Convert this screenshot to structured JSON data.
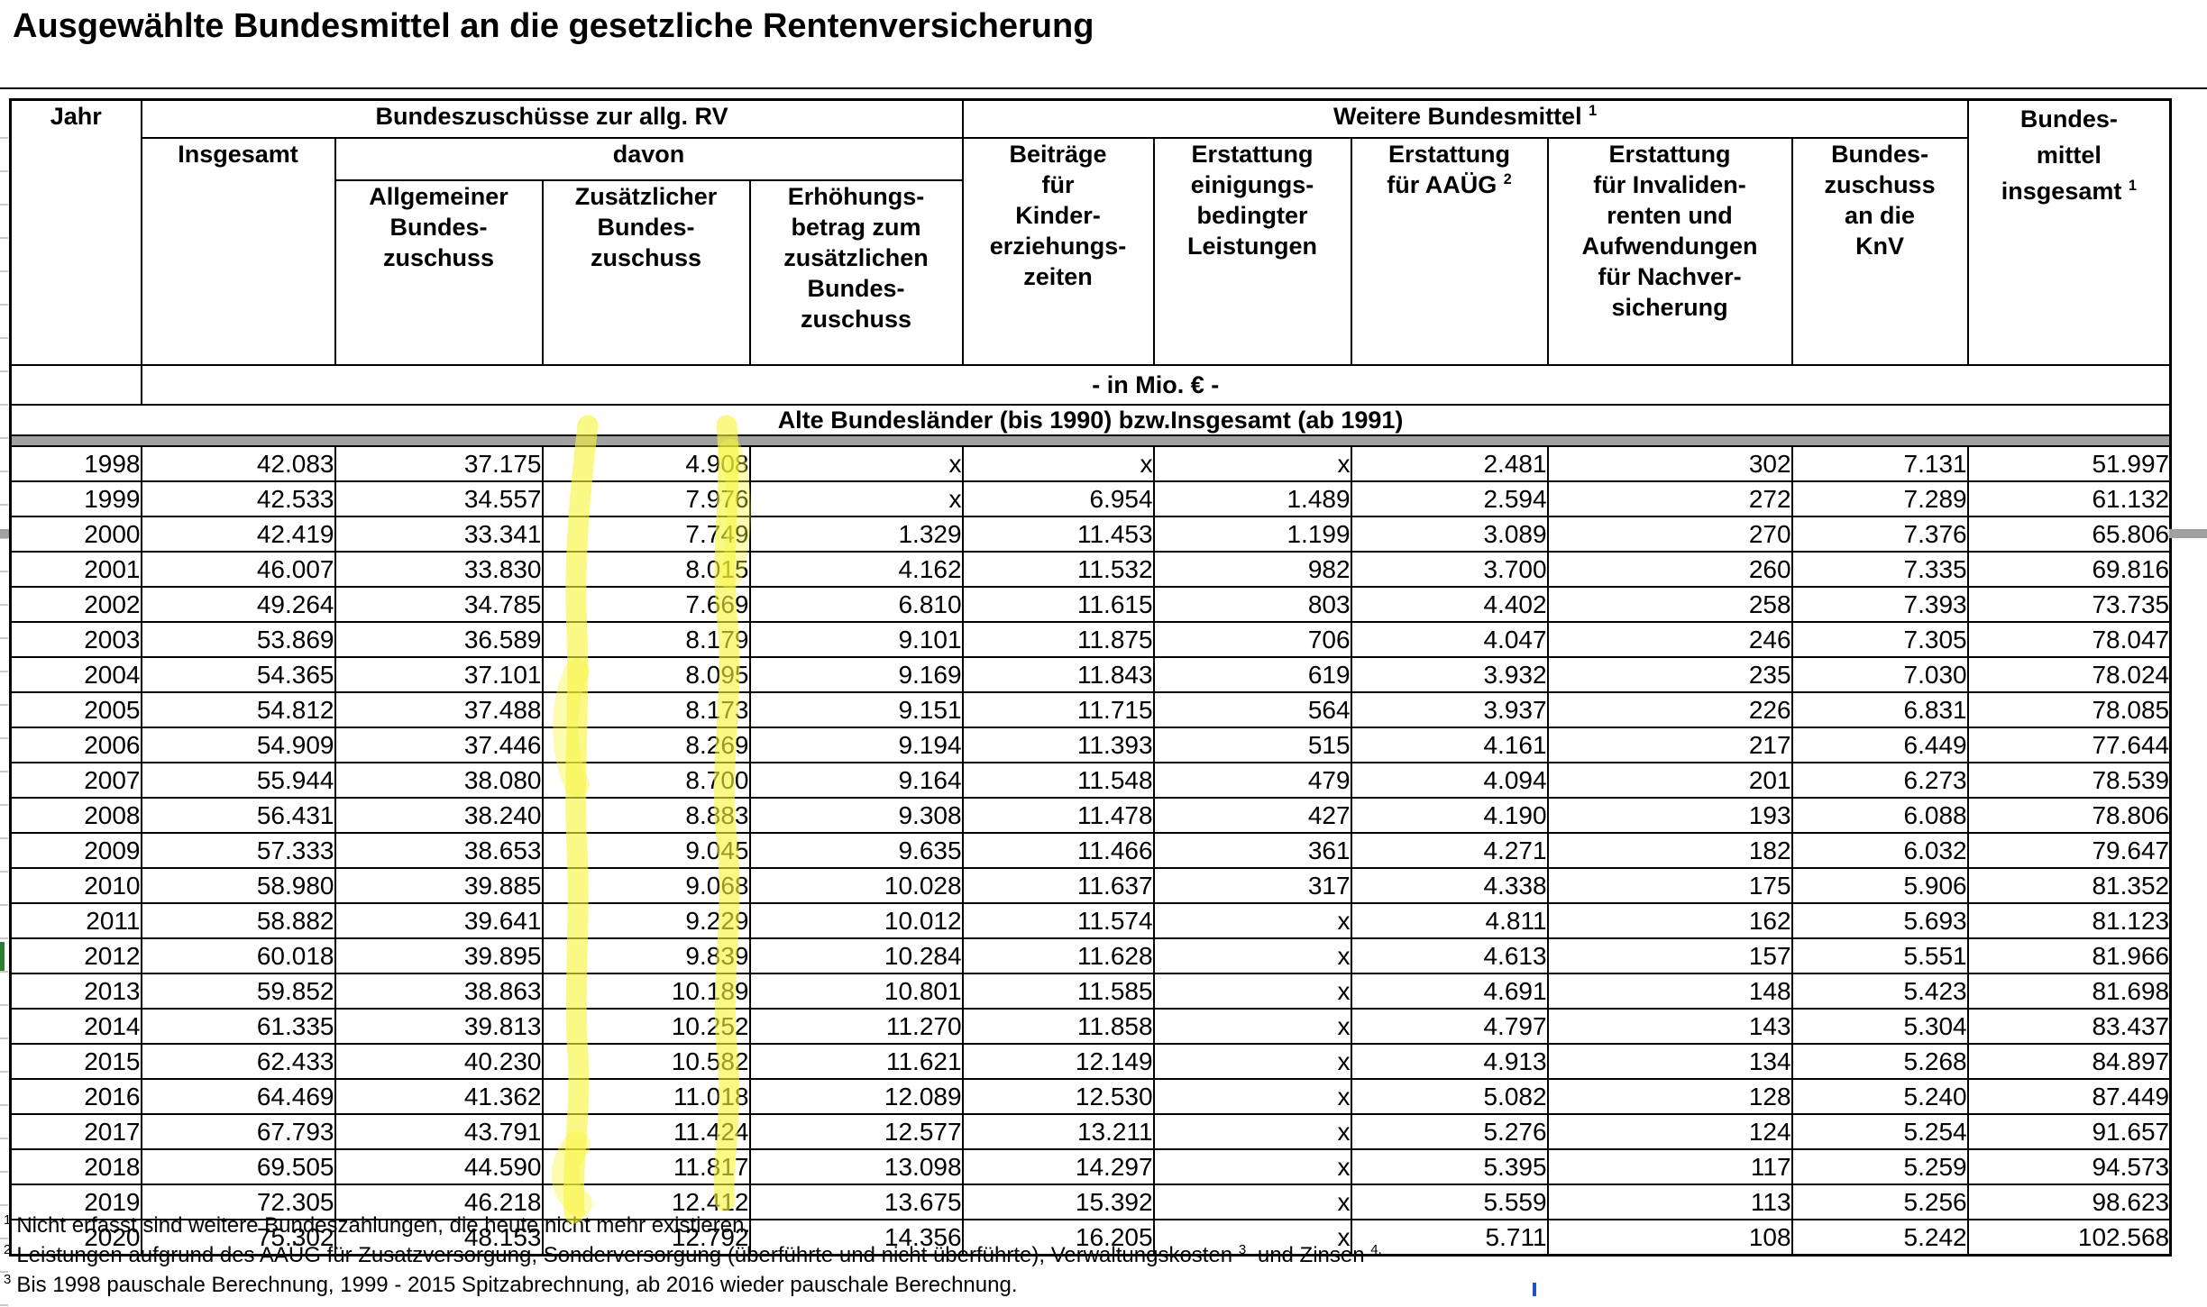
{
  "title": "Ausgewählte Bundesmittel an die gesetzliche Rentenversicherung",
  "colors": {
    "highlighter": "#f7f63a",
    "gray_band": "#a0a0a0",
    "border": "#000000",
    "green_mark": "#2e7d32",
    "blue_mark": "#1f4fd8",
    "grid_sliver": "#c9c9c9"
  },
  "table": {
    "header": {
      "jahr": "Jahr",
      "group1": "Bundeszuschüsse zur allg. RV",
      "insgesamt": "Insgesamt",
      "davon": "davon",
      "allgemeiner": "Allgemeiner\nBundes-\nzuschuss",
      "zusaetzlicher": "Zusätzlicher\nBundes-\nzuschuss",
      "erhoehung": "Erhöhungs-\nbetrag zum\nzusätzlichen\nBundes-\nzuschuss",
      "group2": "Weitere Bundesmittel",
      "group2_sup": "1",
      "beitraege": "Beiträge\nfür\nKinder-\nerziehungs-\nzeiten",
      "einigung": "Erstattung\neinigungs-\nbedingter\nLeistungen",
      "aaueg": "Erstattung\nfür AAÜG",
      "aaueg_sup": "2",
      "invaliden": "Erstattung\nfür Invaliden-\nrenten und\nAufwendungen\nfür Nachver-\nsicherung",
      "knv": "Bundes-\nzuschuss\nan die\nKnV",
      "gesamt": "Bundes-\nmittel\ninsgesamt",
      "gesamt_sup": "1"
    },
    "unit_row": "- in Mio. € -",
    "section_row": "Alte Bundesländer (bis 1990) bzw.Insgesamt (ab 1991)",
    "rows": [
      [
        "1998",
        "42.083",
        "37.175",
        "4.908",
        "x",
        "x",
        "x",
        "2.481",
        "302",
        "7.131",
        "51.997"
      ],
      [
        "1999",
        "42.533",
        "34.557",
        "7.976",
        "x",
        "6.954",
        "1.489",
        "2.594",
        "272",
        "7.289",
        "61.132"
      ],
      [
        "2000",
        "42.419",
        "33.341",
        "7.749",
        "1.329",
        "11.453",
        "1.199",
        "3.089",
        "270",
        "7.376",
        "65.806"
      ],
      [
        "2001",
        "46.007",
        "33.830",
        "8.015",
        "4.162",
        "11.532",
        "982",
        "3.700",
        "260",
        "7.335",
        "69.816"
      ],
      [
        "2002",
        "49.264",
        "34.785",
        "7.669",
        "6.810",
        "11.615",
        "803",
        "4.402",
        "258",
        "7.393",
        "73.735"
      ],
      [
        "2003",
        "53.869",
        "36.589",
        "8.179",
        "9.101",
        "11.875",
        "706",
        "4.047",
        "246",
        "7.305",
        "78.047"
      ],
      [
        "2004",
        "54.365",
        "37.101",
        "8.095",
        "9.169",
        "11.843",
        "619",
        "3.932",
        "235",
        "7.030",
        "78.024"
      ],
      [
        "2005",
        "54.812",
        "37.488",
        "8.173",
        "9.151",
        "11.715",
        "564",
        "3.937",
        "226",
        "6.831",
        "78.085"
      ],
      [
        "2006",
        "54.909",
        "37.446",
        "8.269",
        "9.194",
        "11.393",
        "515",
        "4.161",
        "217",
        "6.449",
        "77.644"
      ],
      [
        "2007",
        "55.944",
        "38.080",
        "8.700",
        "9.164",
        "11.548",
        "479",
        "4.094",
        "201",
        "6.273",
        "78.539"
      ],
      [
        "2008",
        "56.431",
        "38.240",
        "8.883",
        "9.308",
        "11.478",
        "427",
        "4.190",
        "193",
        "6.088",
        "78.806"
      ],
      [
        "2009",
        "57.333",
        "38.653",
        "9.045",
        "9.635",
        "11.466",
        "361",
        "4.271",
        "182",
        "6.032",
        "79.647"
      ],
      [
        "2010",
        "58.980",
        "39.885",
        "9.068",
        "10.028",
        "11.637",
        "317",
        "4.338",
        "175",
        "5.906",
        "81.352"
      ],
      [
        "2011",
        "58.882",
        "39.641",
        "9.229",
        "10.012",
        "11.574",
        "x",
        "4.811",
        "162",
        "5.693",
        "81.123"
      ],
      [
        "2012",
        "60.018",
        "39.895",
        "9.839",
        "10.284",
        "11.628",
        "x",
        "4.613",
        "157",
        "5.551",
        "81.966"
      ],
      [
        "2013",
        "59.852",
        "38.863",
        "10.189",
        "10.801",
        "11.585",
        "x",
        "4.691",
        "148",
        "5.423",
        "81.698"
      ],
      [
        "2014",
        "61.335",
        "39.813",
        "10.252",
        "11.270",
        "11.858",
        "x",
        "4.797",
        "143",
        "5.304",
        "83.437"
      ],
      [
        "2015",
        "62.433",
        "40.230",
        "10.582",
        "11.621",
        "12.149",
        "x",
        "4.913",
        "134",
        "5.268",
        "84.897"
      ],
      [
        "2016",
        "64.469",
        "41.362",
        "11.018",
        "12.089",
        "12.530",
        "x",
        "5.082",
        "128",
        "5.240",
        "87.449"
      ],
      [
        "2017",
        "67.793",
        "43.791",
        "11.424",
        "12.577",
        "13.211",
        "x",
        "5.276",
        "124",
        "5.254",
        "91.657"
      ],
      [
        "2018",
        "69.505",
        "44.590",
        "11.817",
        "13.098",
        "14.297",
        "x",
        "5.395",
        "117",
        "5.259",
        "94.573"
      ],
      [
        "2019",
        "72.305",
        "46.218",
        "12.412",
        "13.675",
        "15.392",
        "x",
        "5.559",
        "113",
        "5.256",
        "98.623"
      ],
      [
        "2020",
        "75.302",
        "48.153",
        "12.792",
        "14.356",
        "16.205",
        "x",
        "5.711",
        "108",
        "5.242",
        "102.568"
      ]
    ]
  },
  "footnotes": [
    {
      "marker": "1",
      "text": "Nicht erfasst sind weitere Bundeszahlungen, die heute nicht mehr existieren."
    },
    {
      "marker": "2",
      "text_a": "Leistungen aufgrund des AAÜG für Zusatzversorgung, Sonderversorgung (überführte und nicht überführte), Verwaltungskosten ",
      "sup_a": "3",
      "text_b": " und Zinsen ",
      "sup_b": "4."
    },
    {
      "marker": "3",
      "text": "Bis 1998 pauschale Berechnung, 1999 - 2015 Spitzabrechnung, ab 2016 wieder pauschale Berechnung."
    }
  ]
}
